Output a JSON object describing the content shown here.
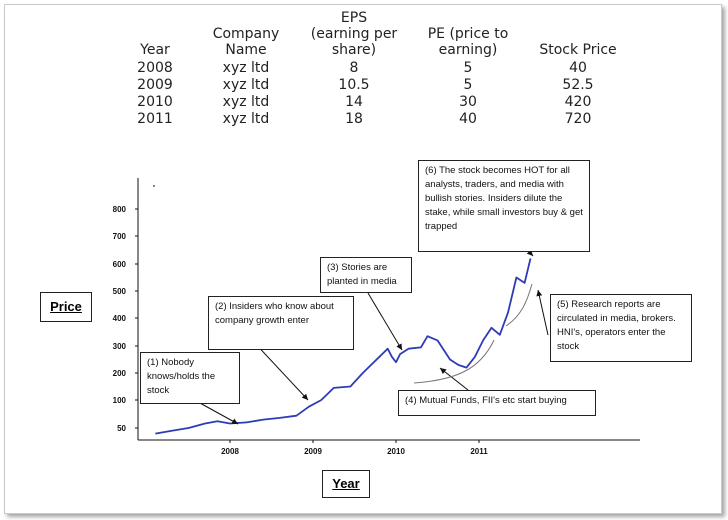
{
  "table": {
    "headers": [
      "Year",
      "Company\nName",
      "EPS\n(earning per\nshare)",
      "PE (price to\nearning)",
      "Stock Price"
    ],
    "rows": [
      [
        "2008",
        "xyz ltd",
        "8",
        "5",
        "40"
      ],
      [
        "2009",
        "xyz ltd",
        "10.5",
        "5",
        "52.5"
      ],
      [
        "2010",
        "xyz ltd",
        "14",
        "30",
        "420"
      ],
      [
        "2011",
        "xyz ltd",
        "18",
        "40",
        "720"
      ]
    ]
  },
  "chart_data": {
    "type": "line",
    "title": "",
    "xlabel": "Year",
    "ylabel": "Price",
    "x_ticks": [
      "2008",
      "2009",
      "2010",
      "2011"
    ],
    "y_ticks": [
      50,
      100,
      200,
      300,
      400,
      500,
      600,
      700,
      800
    ],
    "ylim": [
      0,
      850
    ],
    "grid": false,
    "series": [
      {
        "color": "#2e3bb8",
        "x": [
          2007.1,
          2007.3,
          2007.5,
          2007.7,
          2007.85,
          2008.0,
          2008.2,
          2008.4,
          2008.6,
          2008.8,
          2008.95,
          2009.1,
          2009.25,
          2009.45,
          2009.6,
          2009.7,
          2009.8,
          2009.9,
          2009.95,
          2010.0,
          2010.05,
          2010.15,
          2010.3,
          2010.38,
          2010.5,
          2010.65,
          2010.75,
          2010.85,
          2010.95,
          2011.05,
          2011.15,
          2011.25,
          2011.35,
          2011.45,
          2011.55,
          2011.62
        ],
        "y": [
          40,
          45,
          50,
          58,
          62,
          58,
          60,
          65,
          68,
          72,
          88,
          100,
          145,
          150,
          200,
          230,
          260,
          290,
          260,
          240,
          270,
          290,
          295,
          335,
          320,
          250,
          230,
          220,
          260,
          320,
          365,
          340,
          420,
          550,
          530,
          620
        ]
      }
    ],
    "annotations": [
      "(1) Nobody knows/holds the stock",
      "(2) Insiders who know about company growth enter",
      "(3) Stories are planted in media",
      "(4) Mutual Funds, FII's etc start buying",
      "(5) Research reports are circulated in media, brokers. HNI's, operators enter the stock",
      "(6) The stock becomes HOT for all analysts, traders, and media with bullish stories. Insiders dilute the stake, while small investors buy & get trapped"
    ]
  }
}
